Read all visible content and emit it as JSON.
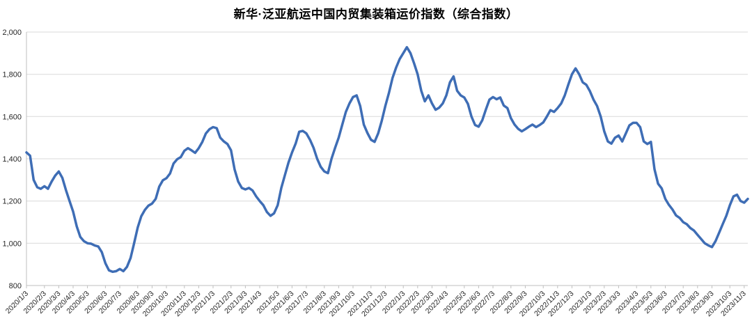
{
  "page": {
    "background": "#FFFFFF"
  },
  "chart_data": {
    "type": "line",
    "title": "新华·泛亚航运中国内贸集装箱运价指数（综合指数）",
    "legend_position": "none",
    "grid": true,
    "line_color": "#3E6DB5",
    "gridline_color": "#D9D9D9",
    "axis_color": "#BFBFBF",
    "label_color": "#262626",
    "ylim": [
      800,
      2000
    ],
    "ytick_values": [
      800,
      1000,
      1200,
      1400,
      1600,
      1800,
      2000
    ],
    "ytick_labels": [
      "800",
      "1,000",
      "1,200",
      "1,400",
      "1,600",
      "1,800",
      "2,000"
    ],
    "x_tick_labels": [
      "2020/1/3",
      "2020/2/3",
      "2020/3/3",
      "2020/4/3",
      "2020/5/3",
      "2020/6/3",
      "2020/7/3",
      "2020/8/3",
      "2020/9/3",
      "2020/10/3",
      "2020/11/3",
      "2020/12/3",
      "2021/1/3",
      "2021/2/3",
      "2021/3/3",
      "2021/4/3",
      "2021/5/3",
      "2021/6/3",
      "2021/7/3",
      "2021/8/3",
      "2021/9/3",
      "2021/10/3",
      "2021/11/3",
      "2021/12/3",
      "2022/1/3",
      "2022/2/3",
      "2022/3/3",
      "2022/4/3",
      "2022/5/3",
      "2022/6/3",
      "2022/7/3",
      "2022/8/3",
      "2022/9/3",
      "2022/10/3",
      "2022/11/3",
      "2022/12/3",
      "2023/1/3",
      "2023/2/3",
      "2023/3/3",
      "2023/4/3",
      "2023/5/3",
      "2023/6/3",
      "2023/7/3",
      "2023/8/3",
      "2023/9/3",
      "2023/10/3",
      "2023/11/3"
    ],
    "x_tick_indices": [
      0,
      5,
      9,
      13,
      17,
      22,
      26,
      31,
      35,
      39,
      44,
      48,
      52,
      57,
      61,
      65,
      70,
      74,
      78,
      83,
      87,
      91,
      96,
      100,
      105,
      109,
      113,
      117,
      122,
      126,
      130,
      135,
      139,
      144,
      148,
      152,
      157,
      161,
      165,
      170,
      174,
      178,
      183,
      187,
      191,
      196,
      200
    ],
    "values": [
      1430,
      1415,
      1300,
      1265,
      1258,
      1270,
      1258,
      1292,
      1320,
      1340,
      1310,
      1252,
      1200,
      1150,
      1080,
      1030,
      1010,
      1000,
      998,
      990,
      985,
      958,
      905,
      872,
      865,
      868,
      878,
      868,
      888,
      930,
      1000,
      1075,
      1128,
      1158,
      1178,
      1188,
      1210,
      1268,
      1298,
      1308,
      1330,
      1378,
      1398,
      1408,
      1438,
      1450,
      1440,
      1428,
      1450,
      1480,
      1520,
      1540,
      1550,
      1545,
      1500,
      1482,
      1470,
      1440,
      1350,
      1292,
      1262,
      1255,
      1262,
      1250,
      1222,
      1200,
      1180,
      1148,
      1130,
      1142,
      1180,
      1262,
      1322,
      1382,
      1430,
      1472,
      1528,
      1532,
      1520,
      1490,
      1452,
      1400,
      1362,
      1340,
      1332,
      1400,
      1452,
      1500,
      1562,
      1622,
      1662,
      1692,
      1700,
      1650,
      1562,
      1522,
      1490,
      1480,
      1520,
      1580,
      1650,
      1712,
      1782,
      1832,
      1872,
      1900,
      1928,
      1900,
      1852,
      1800,
      1722,
      1672,
      1700,
      1662,
      1632,
      1642,
      1662,
      1700,
      1762,
      1790,
      1722,
      1700,
      1690,
      1660,
      1600,
      1560,
      1552,
      1582,
      1632,
      1680,
      1692,
      1682,
      1690,
      1652,
      1640,
      1592,
      1562,
      1542,
      1530,
      1540,
      1552,
      1562,
      1550,
      1560,
      1572,
      1600,
      1630,
      1622,
      1640,
      1662,
      1700,
      1752,
      1800,
      1828,
      1800,
      1762,
      1750,
      1720,
      1680,
      1650,
      1600,
      1530,
      1482,
      1472,
      1500,
      1510,
      1482,
      1520,
      1558,
      1570,
      1570,
      1550,
      1482,
      1470,
      1480,
      1350,
      1282,
      1260,
      1210,
      1182,
      1160,
      1132,
      1120,
      1100,
      1090,
      1072,
      1060,
      1040,
      1020,
      1000,
      990,
      982,
      1010,
      1050,
      1090,
      1130,
      1180,
      1222,
      1230,
      1200,
      1192,
      1210
    ]
  }
}
